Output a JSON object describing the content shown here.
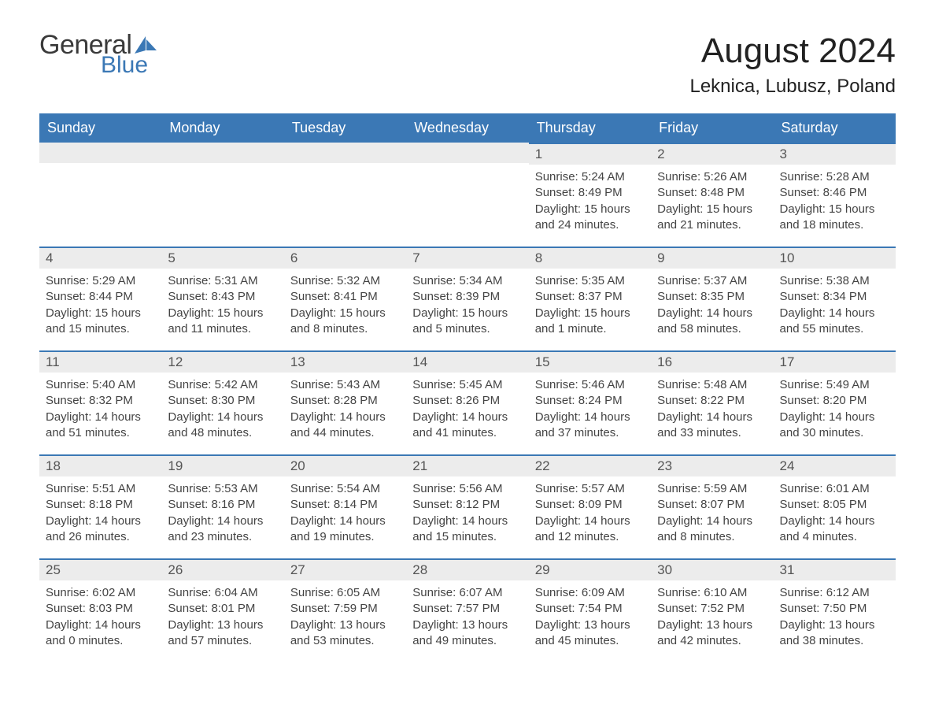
{
  "brand": {
    "general": "General",
    "blue": "Blue"
  },
  "title": "August 2024",
  "location": "Leknica, Lubusz, Poland",
  "colors": {
    "header_bg": "#3b78b5",
    "header_text": "#ffffff",
    "day_num_bg": "#ececec",
    "day_num_text": "#555555",
    "body_text": "#444444",
    "page_bg": "#ffffff",
    "border": "#3b78b5"
  },
  "weekday_headers": [
    "Sunday",
    "Monday",
    "Tuesday",
    "Wednesday",
    "Thursday",
    "Friday",
    "Saturday"
  ],
  "first_weekday_index": 4,
  "days": [
    {
      "n": 1,
      "sunrise": "5:24 AM",
      "sunset": "8:49 PM",
      "daylight": "15 hours and 24 minutes."
    },
    {
      "n": 2,
      "sunrise": "5:26 AM",
      "sunset": "8:48 PM",
      "daylight": "15 hours and 21 minutes."
    },
    {
      "n": 3,
      "sunrise": "5:28 AM",
      "sunset": "8:46 PM",
      "daylight": "15 hours and 18 minutes."
    },
    {
      "n": 4,
      "sunrise": "5:29 AM",
      "sunset": "8:44 PM",
      "daylight": "15 hours and 15 minutes."
    },
    {
      "n": 5,
      "sunrise": "5:31 AM",
      "sunset": "8:43 PM",
      "daylight": "15 hours and 11 minutes."
    },
    {
      "n": 6,
      "sunrise": "5:32 AM",
      "sunset": "8:41 PM",
      "daylight": "15 hours and 8 minutes."
    },
    {
      "n": 7,
      "sunrise": "5:34 AM",
      "sunset": "8:39 PM",
      "daylight": "15 hours and 5 minutes."
    },
    {
      "n": 8,
      "sunrise": "5:35 AM",
      "sunset": "8:37 PM",
      "daylight": "15 hours and 1 minute."
    },
    {
      "n": 9,
      "sunrise": "5:37 AM",
      "sunset": "8:35 PM",
      "daylight": "14 hours and 58 minutes."
    },
    {
      "n": 10,
      "sunrise": "5:38 AM",
      "sunset": "8:34 PM",
      "daylight": "14 hours and 55 minutes."
    },
    {
      "n": 11,
      "sunrise": "5:40 AM",
      "sunset": "8:32 PM",
      "daylight": "14 hours and 51 minutes."
    },
    {
      "n": 12,
      "sunrise": "5:42 AM",
      "sunset": "8:30 PM",
      "daylight": "14 hours and 48 minutes."
    },
    {
      "n": 13,
      "sunrise": "5:43 AM",
      "sunset": "8:28 PM",
      "daylight": "14 hours and 44 minutes."
    },
    {
      "n": 14,
      "sunrise": "5:45 AM",
      "sunset": "8:26 PM",
      "daylight": "14 hours and 41 minutes."
    },
    {
      "n": 15,
      "sunrise": "5:46 AM",
      "sunset": "8:24 PM",
      "daylight": "14 hours and 37 minutes."
    },
    {
      "n": 16,
      "sunrise": "5:48 AM",
      "sunset": "8:22 PM",
      "daylight": "14 hours and 33 minutes."
    },
    {
      "n": 17,
      "sunrise": "5:49 AM",
      "sunset": "8:20 PM",
      "daylight": "14 hours and 30 minutes."
    },
    {
      "n": 18,
      "sunrise": "5:51 AM",
      "sunset": "8:18 PM",
      "daylight": "14 hours and 26 minutes."
    },
    {
      "n": 19,
      "sunrise": "5:53 AM",
      "sunset": "8:16 PM",
      "daylight": "14 hours and 23 minutes."
    },
    {
      "n": 20,
      "sunrise": "5:54 AM",
      "sunset": "8:14 PM",
      "daylight": "14 hours and 19 minutes."
    },
    {
      "n": 21,
      "sunrise": "5:56 AM",
      "sunset": "8:12 PM",
      "daylight": "14 hours and 15 minutes."
    },
    {
      "n": 22,
      "sunrise": "5:57 AM",
      "sunset": "8:09 PM",
      "daylight": "14 hours and 12 minutes."
    },
    {
      "n": 23,
      "sunrise": "5:59 AM",
      "sunset": "8:07 PM",
      "daylight": "14 hours and 8 minutes."
    },
    {
      "n": 24,
      "sunrise": "6:01 AM",
      "sunset": "8:05 PM",
      "daylight": "14 hours and 4 minutes."
    },
    {
      "n": 25,
      "sunrise": "6:02 AM",
      "sunset": "8:03 PM",
      "daylight": "14 hours and 0 minutes."
    },
    {
      "n": 26,
      "sunrise": "6:04 AM",
      "sunset": "8:01 PM",
      "daylight": "13 hours and 57 minutes."
    },
    {
      "n": 27,
      "sunrise": "6:05 AM",
      "sunset": "7:59 PM",
      "daylight": "13 hours and 53 minutes."
    },
    {
      "n": 28,
      "sunrise": "6:07 AM",
      "sunset": "7:57 PM",
      "daylight": "13 hours and 49 minutes."
    },
    {
      "n": 29,
      "sunrise": "6:09 AM",
      "sunset": "7:54 PM",
      "daylight": "13 hours and 45 minutes."
    },
    {
      "n": 30,
      "sunrise": "6:10 AM",
      "sunset": "7:52 PM",
      "daylight": "13 hours and 42 minutes."
    },
    {
      "n": 31,
      "sunrise": "6:12 AM",
      "sunset": "7:50 PM",
      "daylight": "13 hours and 38 minutes."
    }
  ],
  "labels": {
    "sunrise_prefix": "Sunrise: ",
    "sunset_prefix": "Sunset: ",
    "daylight_prefix": "Daylight: "
  }
}
